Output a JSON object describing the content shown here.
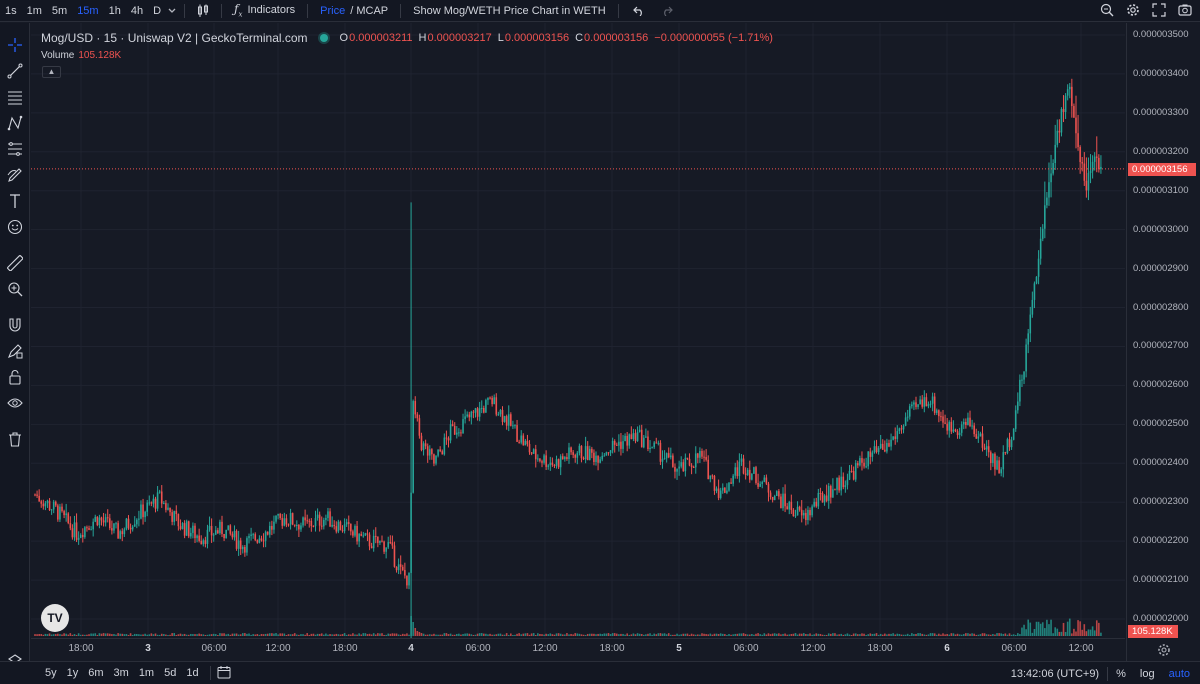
{
  "toolbar": {
    "timeframes": [
      "1s",
      "1m",
      "5m",
      "15m",
      "1h",
      "4h",
      "D"
    ],
    "active_timeframe": "15m",
    "indicators_label": "Indicators",
    "price_label": "Price",
    "mcap_label": "/ MCAP",
    "show_chart_label": "Show Mog/WETH Price Chart in WETH"
  },
  "legend": {
    "symbol": "Mog/USD · 15 · Uniswap V2 | GeckoTerminal.com",
    "open_key": "O",
    "open": "0.000003211",
    "high_key": "H",
    "high": "0.000003217",
    "low_key": "L",
    "low": "0.000003156",
    "close_key": "C",
    "close": "0.000003156",
    "change": "−0.000000055 (−1.71%)",
    "volume_label": "Volume",
    "volume_value": "105.128K"
  },
  "price_scale": {
    "labels": [
      "0.000003500",
      "0.000003400",
      "0.000003300",
      "0.000003200",
      "0.000003100",
      "0.000003000",
      "0.000002900",
      "0.000002800",
      "0.000002700",
      "0.000002600",
      "0.000002500",
      "0.000002400",
      "0.000002300",
      "0.000002200",
      "0.000002100",
      "0.000002000"
    ],
    "current_price": "0.000003156",
    "volume_tag": "105.128K"
  },
  "time_axis": {
    "labels": [
      {
        "t": "18:00",
        "day": false
      },
      {
        "t": "3",
        "day": true
      },
      {
        "t": "06:00",
        "day": false
      },
      {
        "t": "12:00",
        "day": false
      },
      {
        "t": "18:00",
        "day": false
      },
      {
        "t": "4",
        "day": true
      },
      {
        "t": "06:00",
        "day": false
      },
      {
        "t": "12:00",
        "day": false
      },
      {
        "t": "18:00",
        "day": false
      },
      {
        "t": "5",
        "day": true
      },
      {
        "t": "06:00",
        "day": false
      },
      {
        "t": "12:00",
        "day": false
      },
      {
        "t": "18:00",
        "day": false
      },
      {
        "t": "6",
        "day": true
      },
      {
        "t": "06:00",
        "day": false
      },
      {
        "t": "12:00",
        "day": false
      }
    ]
  },
  "bottom": {
    "ranges": [
      "5y",
      "1y",
      "6m",
      "3m",
      "1m",
      "5d",
      "1d"
    ],
    "clock": "13:42:06 (UTC+9)",
    "percent_label": "%",
    "log_label": "log",
    "auto_label": "auto"
  },
  "colors": {
    "up": "#26a69a",
    "down": "#ef5350",
    "background": "#161a25",
    "accent": "#2962ff"
  },
  "chart_data": {
    "type": "candlestick",
    "title": "Mog/USD · 15 · Uniswap V2 | GeckoTerminal.com",
    "ylim": [
      1.95e-06,
      3.52e-06
    ],
    "price_path_anchors": [
      [
        0,
        2.32e-06
      ],
      [
        10,
        2.28e-06
      ],
      [
        20,
        2.22e-06
      ],
      [
        30,
        2.26e-06
      ],
      [
        40,
        2.22e-06
      ],
      [
        50,
        2.27e-06
      ],
      [
        60,
        2.31e-06
      ],
      [
        70,
        2.24e-06
      ],
      [
        80,
        2.21e-06
      ],
      [
        90,
        2.23e-06
      ],
      [
        100,
        2.19e-06
      ],
      [
        110,
        2.22e-06
      ],
      [
        120,
        2.26e-06
      ],
      [
        130,
        2.24e-06
      ],
      [
        140,
        2.26e-06
      ],
      [
        150,
        2.23e-06
      ],
      [
        160,
        2.2e-06
      ],
      [
        170,
        2.19e-06
      ],
      [
        176,
        2.12e-06
      ],
      [
        180,
        2.1e-06
      ],
      [
        182,
        2.54e-06
      ],
      [
        186,
        2.45e-06
      ],
      [
        192,
        2.4e-06
      ],
      [
        200,
        2.48e-06
      ],
      [
        210,
        2.52e-06
      ],
      [
        220,
        2.56e-06
      ],
      [
        230,
        2.49e-06
      ],
      [
        240,
        2.42e-06
      ],
      [
        250,
        2.4e-06
      ],
      [
        260,
        2.43e-06
      ],
      [
        270,
        2.42e-06
      ],
      [
        280,
        2.45e-06
      ],
      [
        290,
        2.47e-06
      ],
      [
        300,
        2.43e-06
      ],
      [
        310,
        2.38e-06
      ],
      [
        320,
        2.42e-06
      ],
      [
        330,
        2.32e-06
      ],
      [
        340,
        2.4e-06
      ],
      [
        350,
        2.35e-06
      ],
      [
        360,
        2.3e-06
      ],
      [
        370,
        2.26e-06
      ],
      [
        380,
        2.32e-06
      ],
      [
        390,
        2.36e-06
      ],
      [
        400,
        2.41e-06
      ],
      [
        410,
        2.44e-06
      ],
      [
        420,
        2.52e-06
      ],
      [
        430,
        2.57e-06
      ],
      [
        440,
        2.49e-06
      ],
      [
        450,
        2.5e-06
      ],
      [
        460,
        2.42e-06
      ],
      [
        464,
        2.38e-06
      ],
      [
        470,
        2.48e-06
      ],
      [
        476,
        2.65e-06
      ],
      [
        482,
        2.9e-06
      ],
      [
        488,
        3.12e-06
      ],
      [
        494,
        3.3e-06
      ],
      [
        498,
        3.37e-06
      ],
      [
        502,
        3.2e-06
      ],
      [
        506,
        3.12e-06
      ],
      [
        510,
        3.18e-06
      ],
      [
        513,
        3.16e-06
      ]
    ],
    "volume_series_max": "105.128K"
  }
}
